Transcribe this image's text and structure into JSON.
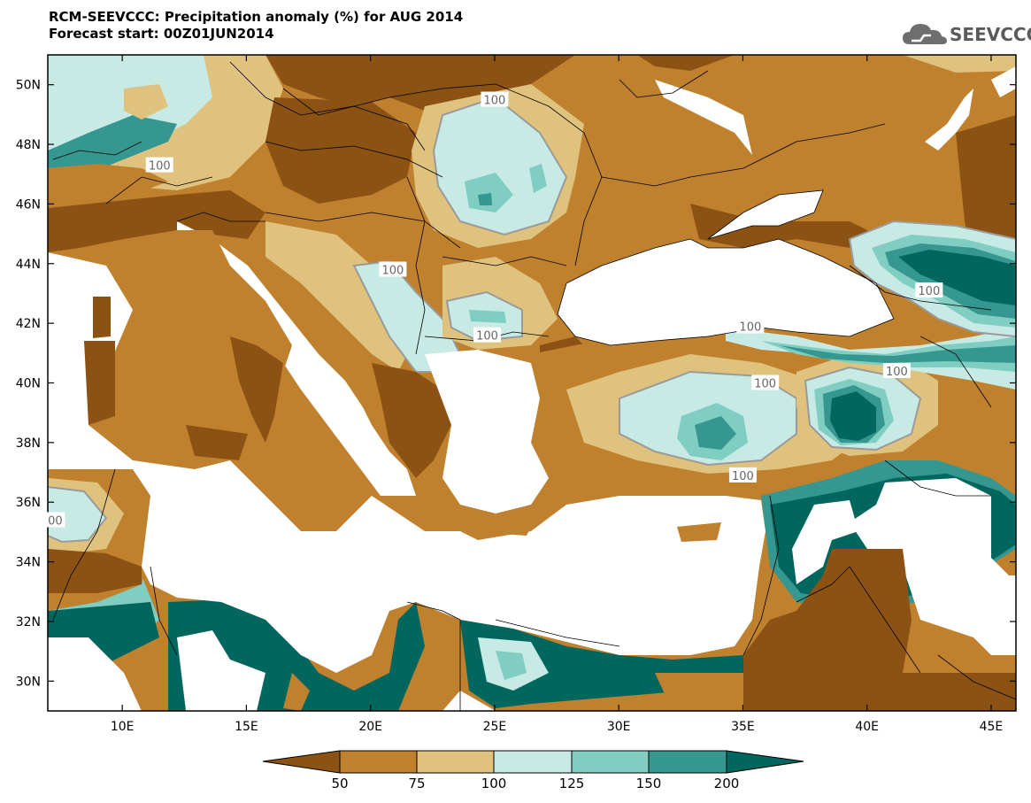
{
  "title_line1": "RCM-SEEVCCC: Precipitation anomaly (%) for AUG 2014",
  "title_line2": "Forecast start: 00Z01JUN2014",
  "logo_text": "SEEVCCC",
  "colors": {
    "lt50": "#8c5213",
    "c50_75": "#bf812e",
    "c75_100": "#dfc27e",
    "c100_125": "#c7eae5",
    "c125_150": "#80cdc1",
    "c150_200": "#35978f",
    "gt200": "#01665e",
    "sea": "#ffffff",
    "contour": "#9a9a9a"
  },
  "chart_data": {
    "type": "heatmap",
    "title": "RCM-SEEVCCC: Precipitation anomaly (%) for AUG 2014",
    "subtitle": "Forecast start: 00Z01JUN2014",
    "units": "%",
    "x_range": [
      7,
      46
    ],
    "y_range": [
      29,
      51
    ],
    "x_ticks": [
      "10E",
      "15E",
      "20E",
      "25E",
      "30E",
      "35E",
      "40E",
      "45E"
    ],
    "y_ticks": [
      "30N",
      "32N",
      "34N",
      "36N",
      "38N",
      "40N",
      "42N",
      "44N",
      "46N",
      "48N",
      "50N"
    ],
    "colorbar_levels": [
      "50",
      "75",
      "100",
      "125",
      "150",
      "200"
    ],
    "contour_labels": [
      {
        "text": "100",
        "lon": 25.0,
        "lat": 49.5
      },
      {
        "text": "100",
        "lon": 11.5,
        "lat": 47.3
      },
      {
        "text": "100",
        "lon": 20.9,
        "lat": 43.8
      },
      {
        "text": "100",
        "lon": 24.7,
        "lat": 41.6
      },
      {
        "text": "100",
        "lon": 42.5,
        "lat": 43.1
      },
      {
        "text": "100",
        "lon": 35.3,
        "lat": 41.9
      },
      {
        "text": "100",
        "lon": 41.2,
        "lat": 40.4
      },
      {
        "text": "100",
        "lon": 35.9,
        "lat": 40.0
      },
      {
        "text": "100",
        "lon": 35.0,
        "lat": 36.9
      },
      {
        "text": "00",
        "lon": 7.3,
        "lat": 35.4
      }
    ]
  }
}
